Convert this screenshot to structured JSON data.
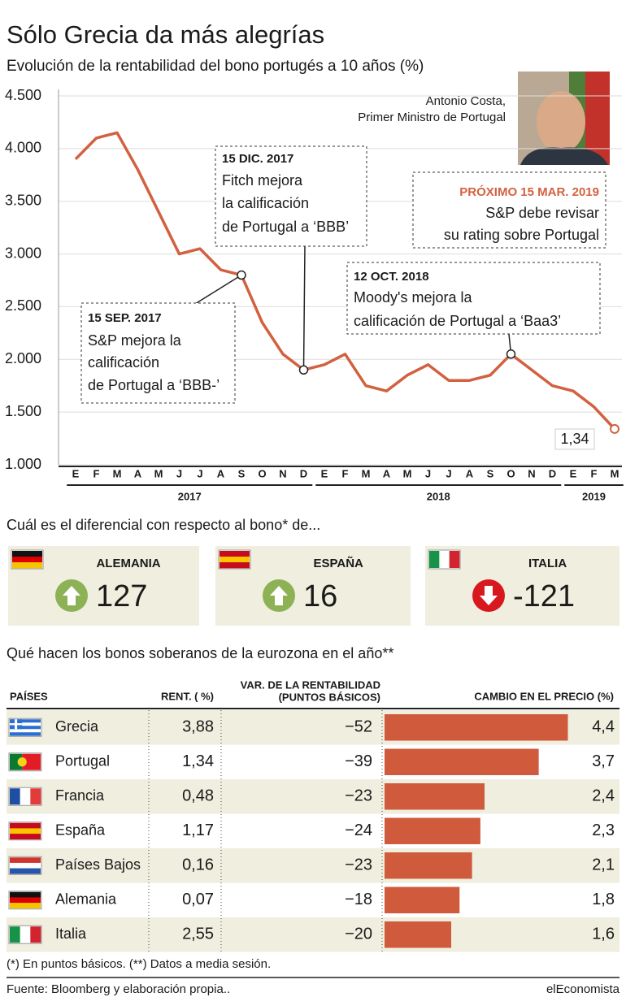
{
  "title": "Sólo Grecia da más alegrías",
  "subtitle": "Evolución de la rentabilidad del bono portugés a 10 años (%)",
  "chart_data": [
    {
      "type": "line",
      "x": [
        "2017-01",
        "2017-02",
        "2017-03",
        "2017-04",
        "2017-05",
        "2017-06",
        "2017-07",
        "2017-08",
        "2017-09",
        "2017-10",
        "2017-11",
        "2017-12",
        "2018-01",
        "2018-02",
        "2018-03",
        "2018-04",
        "2018-05",
        "2018-06",
        "2018-07",
        "2018-08",
        "2018-09",
        "2018-10",
        "2018-11",
        "2018-12",
        "2019-01",
        "2019-02",
        "2019-03"
      ],
      "values": [
        3.9,
        4.1,
        4.15,
        3.8,
        3.4,
        3.0,
        3.05,
        2.85,
        2.8,
        2.35,
        2.05,
        1.9,
        1.95,
        2.05,
        1.75,
        1.7,
        1.85,
        1.95,
        1.8,
        1.8,
        1.85,
        2.05,
        1.9,
        1.75,
        1.7,
        1.55,
        1.34
      ],
      "last_value_label": "1,34",
      "color": "#d2613f",
      "ylim": [
        1,
        4.5
      ],
      "yticks": [
        {
          "value": 1,
          "label": "1.000"
        },
        {
          "value": 1.5,
          "label": "1.500"
        },
        {
          "value": 2,
          "label": "2.000"
        },
        {
          "value": 2.5,
          "label": "2.500"
        },
        {
          "value": 3,
          "label": "3.000"
        },
        {
          "value": 3.5,
          "label": "3.500"
        },
        {
          "value": 4,
          "label": "4.000"
        },
        {
          "value": 4.5,
          "label": "4.500"
        }
      ],
      "grid": true,
      "xtick_labels": [
        "E",
        "F",
        "M",
        "A",
        "M",
        "J",
        "J",
        "A",
        "S",
        "O",
        "N",
        "D",
        "E",
        "F",
        "M",
        "A",
        "M",
        "J",
        "J",
        "A",
        "S",
        "O",
        "N",
        "D",
        "E",
        "F",
        "M"
      ],
      "x_year_labels": [
        "2017",
        "2018",
        "2019"
      ],
      "annotations": [
        {
          "x": "2017-09",
          "value": 2.8,
          "lines": [
            "15 SEP. 2017",
            "S&P mejora la",
            "calificación",
            "de Portugal a ‘BBB-’"
          ]
        },
        {
          "x": "2017-12",
          "value": 1.9,
          "lines": [
            "15 DIC. 2017",
            "Fitch mejora",
            "la calificación",
            "de Portugal a ‘BBB’"
          ]
        },
        {
          "lines": [
            "PRÓXIMO 15 MAR. 2019",
            "S&P debe revisar",
            "su rating sobre Portugal"
          ]
        },
        {
          "x": "2018-10",
          "value": 2.05,
          "lines": [
            "12 OCT. 2018",
            "Moody's mejora la",
            "calificación de Portugal a ‘Baa3’"
          ]
        }
      ],
      "photo_caption": [
        "Antonio Costa,",
        "Primer Ministro de Portugal"
      ]
    },
    {
      "type": "bar",
      "orientation": "horizontal",
      "title": "CAMBIO EN EL PRECIO (%)",
      "categories": [
        "Grecia",
        "Portugal",
        "Francia",
        "España",
        "Países Bajos",
        "Alemania",
        "Italia"
      ],
      "values": [
        4.4,
        3.7,
        2.4,
        2.3,
        2.1,
        1.8,
        1.6
      ],
      "value_labels": [
        "4,4",
        "3,7",
        "2,4",
        "2,3",
        "2,1",
        "1,8",
        "1,6"
      ],
      "color": "#cf5a3c",
      "xlim": [
        0,
        5.6
      ]
    }
  ],
  "spread": {
    "title": "Cuál es el diferencial  con respecto al bono* de...",
    "items": [
      {
        "country": "ALEMANIA",
        "value": 127
      },
      {
        "country": "ESPAÑA",
        "value": 16
      },
      {
        "country": "ITALIA",
        "value": -121
      }
    ]
  },
  "table": {
    "title": "Qué hacen los bonos soberanos de la eurozona en el año**",
    "headers": [
      "PAÍSES",
      "RENT. ( %)",
      "VAR. DE LA RENTABILIDAD",
      "(PUNTOS BÁSICOS)"
    ],
    "rows": [
      [
        "3,88",
        "−52"
      ],
      [
        "1,34",
        "−39"
      ],
      [
        "0,48",
        "−23"
      ],
      [
        "1,17",
        "−24"
      ],
      [
        "0,16",
        "−23"
      ],
      [
        "0,07",
        "−18"
      ],
      [
        "2,55",
        "−20"
      ]
    ]
  },
  "footnote": "(*) En puntos básicos. (**) Datos a media sesión.",
  "source": "Fuente: Bloomberg y elaboración propia..",
  "brand": "elEconomista"
}
